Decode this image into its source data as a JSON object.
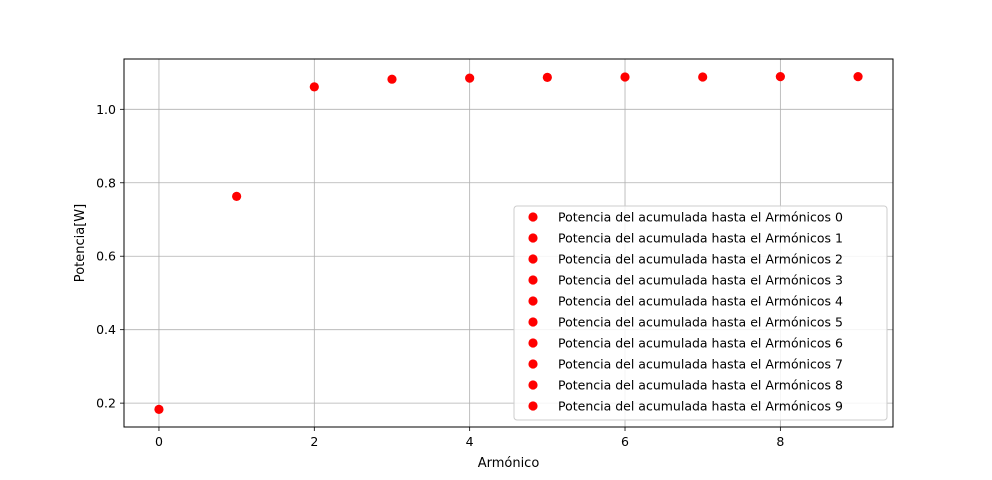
{
  "colors": {
    "marker": "#ff0000",
    "grid": "#b0b0b0",
    "axis": "#000000",
    "legend_border": "#cccccc"
  },
  "chart_data": {
    "type": "scatter",
    "title": "",
    "xlabel": "Armónico",
    "ylabel": "Potencia[W]",
    "xlim": [
      -0.45,
      9.45
    ],
    "ylim": [
      0.135,
      1.137
    ],
    "x_ticks": [
      0,
      2,
      4,
      6,
      8
    ],
    "y_ticks": [
      0.2,
      0.4,
      0.6,
      0.8,
      1.0
    ],
    "x_tick_labels": [
      "0",
      "2",
      "4",
      "6",
      "8"
    ],
    "y_tick_labels": [
      "0.2",
      "0.4",
      "0.6",
      "0.8",
      "1.0"
    ],
    "grid": true,
    "legend_position": "lower-right",
    "series": [
      {
        "name": "Potencia del acumulada  hasta el Armónicos 0",
        "x": [
          0
        ],
        "y": [
          0.183
        ]
      },
      {
        "name": "Potencia del acumulada  hasta el Armónicos 1",
        "x": [
          1
        ],
        "y": [
          0.763
        ]
      },
      {
        "name": "Potencia del acumulada  hasta el Armónicos 2",
        "x": [
          2
        ],
        "y": [
          1.061
        ]
      },
      {
        "name": "Potencia del acumulada  hasta el Armónicos 3",
        "x": [
          3
        ],
        "y": [
          1.082
        ]
      },
      {
        "name": "Potencia del acumulada  hasta el Armónicos 4",
        "x": [
          4
        ],
        "y": [
          1.085
        ]
      },
      {
        "name": "Potencia del acumulada  hasta el Armónicos 5",
        "x": [
          5
        ],
        "y": [
          1.087
        ]
      },
      {
        "name": "Potencia del acumulada  hasta el Armónicos 6",
        "x": [
          6
        ],
        "y": [
          1.088
        ]
      },
      {
        "name": "Potencia del acumulada  hasta el Armónicos 7",
        "x": [
          7
        ],
        "y": [
          1.088
        ]
      },
      {
        "name": "Potencia del acumulada  hasta el Armónicos 8",
        "x": [
          8
        ],
        "y": [
          1.089
        ]
      },
      {
        "name": "Potencia del acumulada  hasta el Armónicos 9",
        "x": [
          9
        ],
        "y": [
          1.089
        ]
      }
    ]
  }
}
